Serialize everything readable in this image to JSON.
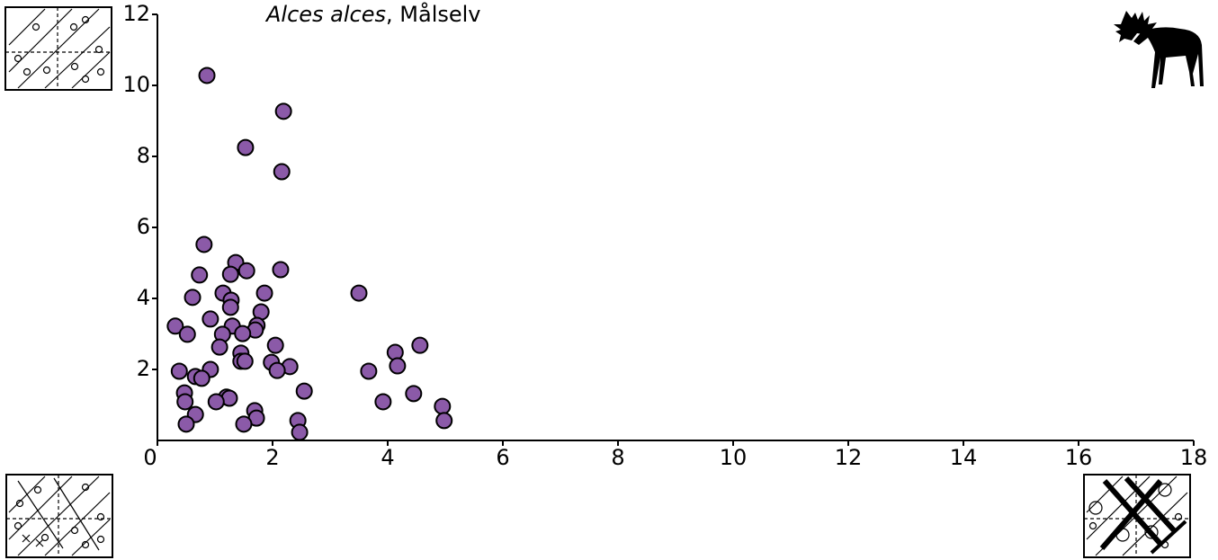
{
  "chart_data": {
    "type": "scatter",
    "title_species": "Alces alces",
    "title_place": ", Målselv",
    "x": [
      0.86,
      2.19,
      1.53,
      2.16,
      0.81,
      1.36,
      0.73,
      1.27,
      1.55,
      2.14,
      3.5,
      1.14,
      1.86,
      0.61,
      1.28,
      1.27,
      0.31,
      0.92,
      1.8,
      1.3,
      1.73,
      1.7,
      0.52,
      1.13,
      1.48,
      1.08,
      2.05,
      4.56,
      1.45,
      4.13,
      1.45,
      1.52,
      1.98,
      4.17,
      2.3,
      2.08,
      0.92,
      3.67,
      0.38,
      0.66,
      0.77,
      2.55,
      0.47,
      4.45,
      1.2,
      1.25,
      1.02,
      0.48,
      3.92,
      4.95,
      1.69,
      0.66,
      1.72,
      4.98,
      2.44,
      0.5,
      1.5,
      2.47
    ],
    "values": [
      10.28,
      9.27,
      8.25,
      7.57,
      5.52,
      5.01,
      4.66,
      4.68,
      4.78,
      4.81,
      4.15,
      4.15,
      4.15,
      4.03,
      3.95,
      3.75,
      3.22,
      3.42,
      3.62,
      3.22,
      3.24,
      3.11,
      2.99,
      2.99,
      3.01,
      2.63,
      2.68,
      2.68,
      2.46,
      2.48,
      2.23,
      2.23,
      2.2,
      2.1,
      2.08,
      1.97,
      2.0,
      1.95,
      1.95,
      1.8,
      1.75,
      1.39,
      1.34,
      1.32,
      1.22,
      1.19,
      1.09,
      1.09,
      1.09,
      0.96,
      0.84,
      0.73,
      0.63,
      0.56,
      0.56,
      0.46,
      0.46,
      0.23
    ],
    "color": "#8b5aa8",
    "xlim": [
      0,
      18
    ],
    "xticks": [
      0,
      2,
      4,
      6,
      8,
      10,
      12,
      14,
      16,
      18
    ],
    "ylim": [
      0,
      12
    ],
    "yticks": [
      2,
      4,
      6,
      8,
      10,
      12
    ]
  }
}
